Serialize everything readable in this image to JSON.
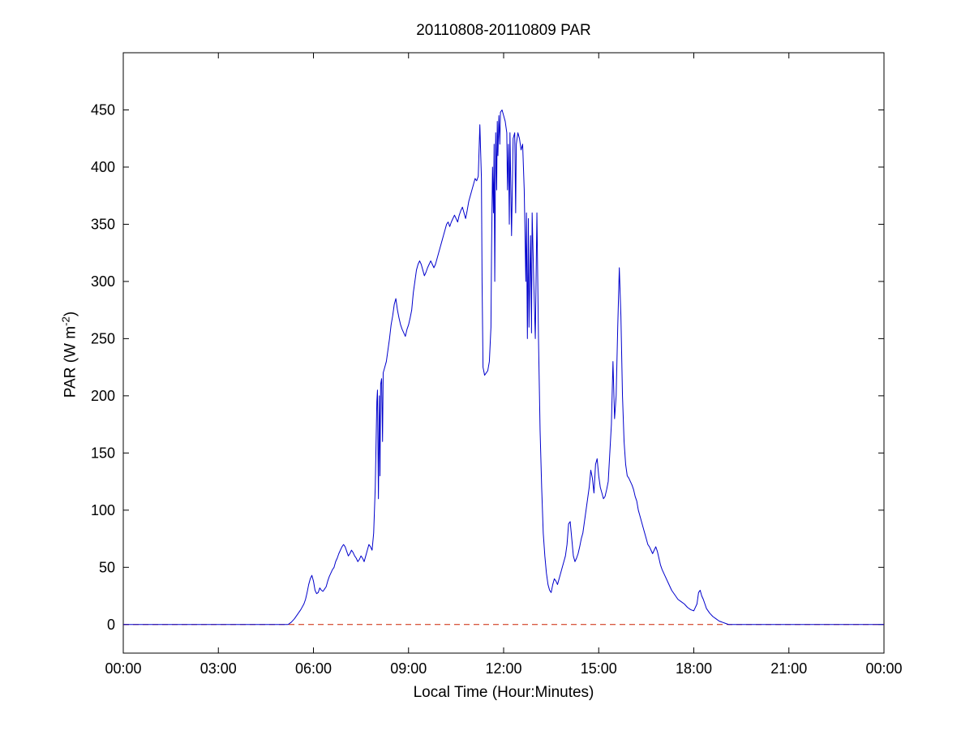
{
  "chart_data": {
    "type": "line",
    "title": "20110808-20110809 PAR",
    "xlabel": "Local Time (Hour:Minutes)",
    "ylabel": "PAR (W m-2)",
    "ylabel_parts": {
      "prefix": "PAR (W m",
      "sup": "-2",
      "suffix": ")"
    },
    "xlim": [
      0,
      24
    ],
    "ylim": [
      -25,
      500
    ],
    "grid": false,
    "legend": "none",
    "x_ticks": {
      "values": [
        0,
        3,
        6,
        9,
        12,
        15,
        18,
        21,
        24
      ],
      "labels": [
        "00:00",
        "03:00",
        "06:00",
        "09:00",
        "12:00",
        "15:00",
        "18:00",
        "21:00",
        "00:00"
      ]
    },
    "y_ticks": {
      "values": [
        0,
        50,
        100,
        150,
        200,
        250,
        300,
        350,
        400,
        450
      ],
      "labels": [
        "0",
        "50",
        "100",
        "150",
        "200",
        "250",
        "300",
        "350",
        "400",
        "450"
      ]
    },
    "series": [
      {
        "name": "zero-reference-line",
        "color": "#cc2200",
        "style": "dashed",
        "points": [
          [
            0,
            0
          ],
          [
            24,
            0
          ]
        ]
      },
      {
        "name": "PAR",
        "color": "#0000cc",
        "style": "solid",
        "points": [
          [
            0.0,
            0
          ],
          [
            1.0,
            0
          ],
          [
            2.0,
            0
          ],
          [
            3.0,
            0
          ],
          [
            4.0,
            0
          ],
          [
            5.0,
            0
          ],
          [
            5.2,
            0
          ],
          [
            5.3,
            2
          ],
          [
            5.4,
            5
          ],
          [
            5.5,
            9
          ],
          [
            5.6,
            13
          ],
          [
            5.7,
            18
          ],
          [
            5.75,
            22
          ],
          [
            5.8,
            28
          ],
          [
            5.85,
            35
          ],
          [
            5.9,
            40
          ],
          [
            5.95,
            43
          ],
          [
            6.0,
            38
          ],
          [
            6.05,
            30
          ],
          [
            6.1,
            27
          ],
          [
            6.15,
            28
          ],
          [
            6.2,
            32
          ],
          [
            6.25,
            30
          ],
          [
            6.3,
            29
          ],
          [
            6.35,
            31
          ],
          [
            6.4,
            33
          ],
          [
            6.45,
            38
          ],
          [
            6.5,
            42
          ],
          [
            6.55,
            45
          ],
          [
            6.6,
            48
          ],
          [
            6.65,
            50
          ],
          [
            6.7,
            55
          ],
          [
            6.75,
            58
          ],
          [
            6.8,
            62
          ],
          [
            6.85,
            65
          ],
          [
            6.9,
            68
          ],
          [
            6.95,
            70
          ],
          [
            7.0,
            68
          ],
          [
            7.05,
            64
          ],
          [
            7.1,
            60
          ],
          [
            7.15,
            62
          ],
          [
            7.2,
            65
          ],
          [
            7.25,
            63
          ],
          [
            7.3,
            60
          ],
          [
            7.35,
            58
          ],
          [
            7.4,
            55
          ],
          [
            7.45,
            57
          ],
          [
            7.5,
            60
          ],
          [
            7.55,
            58
          ],
          [
            7.6,
            55
          ],
          [
            7.65,
            60
          ],
          [
            7.7,
            65
          ],
          [
            7.75,
            70
          ],
          [
            7.8,
            68
          ],
          [
            7.85,
            65
          ],
          [
            7.9,
            80
          ],
          [
            7.95,
            120
          ],
          [
            8.0,
            195
          ],
          [
            8.02,
            205
          ],
          [
            8.05,
            110
          ],
          [
            8.08,
            200
          ],
          [
            8.1,
            130
          ],
          [
            8.12,
            210
          ],
          [
            8.15,
            215
          ],
          [
            8.18,
            160
          ],
          [
            8.2,
            220
          ],
          [
            8.25,
            225
          ],
          [
            8.3,
            230
          ],
          [
            8.35,
            240
          ],
          [
            8.4,
            250
          ],
          [
            8.45,
            262
          ],
          [
            8.5,
            270
          ],
          [
            8.55,
            280
          ],
          [
            8.6,
            285
          ],
          [
            8.65,
            275
          ],
          [
            8.7,
            268
          ],
          [
            8.75,
            262
          ],
          [
            8.8,
            258
          ],
          [
            8.85,
            255
          ],
          [
            8.9,
            252
          ],
          [
            8.95,
            258
          ],
          [
            9.0,
            262
          ],
          [
            9.05,
            268
          ],
          [
            9.1,
            275
          ],
          [
            9.15,
            290
          ],
          [
            9.2,
            300
          ],
          [
            9.25,
            310
          ],
          [
            9.3,
            315
          ],
          [
            9.35,
            318
          ],
          [
            9.4,
            315
          ],
          [
            9.45,
            310
          ],
          [
            9.5,
            305
          ],
          [
            9.55,
            308
          ],
          [
            9.6,
            312
          ],
          [
            9.65,
            315
          ],
          [
            9.7,
            318
          ],
          [
            9.75,
            315
          ],
          [
            9.8,
            312
          ],
          [
            9.85,
            315
          ],
          [
            9.9,
            320
          ],
          [
            9.95,
            325
          ],
          [
            10.0,
            330
          ],
          [
            10.05,
            335
          ],
          [
            10.1,
            340
          ],
          [
            10.15,
            345
          ],
          [
            10.2,
            350
          ],
          [
            10.25,
            352
          ],
          [
            10.3,
            348
          ],
          [
            10.35,
            352
          ],
          [
            10.4,
            355
          ],
          [
            10.45,
            358
          ],
          [
            10.5,
            355
          ],
          [
            10.55,
            352
          ],
          [
            10.6,
            358
          ],
          [
            10.65,
            362
          ],
          [
            10.7,
            365
          ],
          [
            10.75,
            360
          ],
          [
            10.8,
            355
          ],
          [
            10.85,
            362
          ],
          [
            10.9,
            370
          ],
          [
            10.95,
            375
          ],
          [
            11.0,
            380
          ],
          [
            11.05,
            385
          ],
          [
            11.1,
            390
          ],
          [
            11.15,
            388
          ],
          [
            11.2,
            392
          ],
          [
            11.25,
            437
          ],
          [
            11.3,
            390
          ],
          [
            11.32,
            300
          ],
          [
            11.35,
            225
          ],
          [
            11.4,
            218
          ],
          [
            11.45,
            220
          ],
          [
            11.5,
            222
          ],
          [
            11.55,
            230
          ],
          [
            11.6,
            260
          ],
          [
            11.62,
            330
          ],
          [
            11.65,
            400
          ],
          [
            11.68,
            360
          ],
          [
            11.7,
            420
          ],
          [
            11.72,
            300
          ],
          [
            11.75,
            430
          ],
          [
            11.78,
            380
          ],
          [
            11.8,
            440
          ],
          [
            11.82,
            410
          ],
          [
            11.85,
            445
          ],
          [
            11.88,
            420
          ],
          [
            11.9,
            448
          ],
          [
            11.95,
            450
          ],
          [
            12.0,
            445
          ],
          [
            12.05,
            440
          ],
          [
            12.1,
            430
          ],
          [
            12.12,
            380
          ],
          [
            12.15,
            420
          ],
          [
            12.18,
            350
          ],
          [
            12.2,
            430
          ],
          [
            12.25,
            340
          ],
          [
            12.3,
            425
          ],
          [
            12.35,
            430
          ],
          [
            12.38,
            360
          ],
          [
            12.4,
            420
          ],
          [
            12.45,
            430
          ],
          [
            12.5,
            425
          ],
          [
            12.55,
            415
          ],
          [
            12.6,
            420
          ],
          [
            12.65,
            380
          ],
          [
            12.7,
            300
          ],
          [
            12.72,
            360
          ],
          [
            12.75,
            250
          ],
          [
            12.78,
            355
          ],
          [
            12.8,
            260
          ],
          [
            12.85,
            340
          ],
          [
            12.88,
            255
          ],
          [
            12.9,
            360
          ],
          [
            12.95,
            300
          ],
          [
            13.0,
            250
          ],
          [
            13.05,
            360
          ],
          [
            13.1,
            250
          ],
          [
            13.15,
            170
          ],
          [
            13.2,
            120
          ],
          [
            13.25,
            80
          ],
          [
            13.3,
            60
          ],
          [
            13.35,
            45
          ],
          [
            13.4,
            35
          ],
          [
            13.45,
            30
          ],
          [
            13.5,
            28
          ],
          [
            13.55,
            35
          ],
          [
            13.6,
            40
          ],
          [
            13.65,
            38
          ],
          [
            13.7,
            35
          ],
          [
            13.75,
            40
          ],
          [
            13.8,
            45
          ],
          [
            13.85,
            50
          ],
          [
            13.9,
            55
          ],
          [
            13.95,
            60
          ],
          [
            14.0,
            70
          ],
          [
            14.05,
            88
          ],
          [
            14.1,
            90
          ],
          [
            14.15,
            75
          ],
          [
            14.2,
            60
          ],
          [
            14.25,
            55
          ],
          [
            14.3,
            58
          ],
          [
            14.35,
            62
          ],
          [
            14.4,
            68
          ],
          [
            14.45,
            75
          ],
          [
            14.5,
            80
          ],
          [
            14.55,
            90
          ],
          [
            14.6,
            100
          ],
          [
            14.65,
            110
          ],
          [
            14.7,
            120
          ],
          [
            14.75,
            135
          ],
          [
            14.8,
            128
          ],
          [
            14.85,
            115
          ],
          [
            14.9,
            140
          ],
          [
            14.95,
            145
          ],
          [
            15.0,
            130
          ],
          [
            15.05,
            120
          ],
          [
            15.1,
            115
          ],
          [
            15.15,
            110
          ],
          [
            15.2,
            112
          ],
          [
            15.25,
            118
          ],
          [
            15.3,
            125
          ],
          [
            15.35,
            150
          ],
          [
            15.4,
            175
          ],
          [
            15.45,
            230
          ],
          [
            15.5,
            180
          ],
          [
            15.55,
            200
          ],
          [
            15.6,
            260
          ],
          [
            15.65,
            312
          ],
          [
            15.7,
            270
          ],
          [
            15.75,
            200
          ],
          [
            15.8,
            160
          ],
          [
            15.85,
            140
          ],
          [
            15.9,
            130
          ],
          [
            15.95,
            128
          ],
          [
            16.0,
            125
          ],
          [
            16.05,
            122
          ],
          [
            16.1,
            118
          ],
          [
            16.15,
            112
          ],
          [
            16.2,
            108
          ],
          [
            16.25,
            100
          ],
          [
            16.3,
            95
          ],
          [
            16.35,
            90
          ],
          [
            16.4,
            85
          ],
          [
            16.45,
            80
          ],
          [
            16.5,
            75
          ],
          [
            16.55,
            70
          ],
          [
            16.6,
            68
          ],
          [
            16.65,
            65
          ],
          [
            16.7,
            62
          ],
          [
            16.75,
            65
          ],
          [
            16.8,
            68
          ],
          [
            16.85,
            64
          ],
          [
            16.9,
            58
          ],
          [
            16.95,
            52
          ],
          [
            17.0,
            48
          ],
          [
            17.1,
            42
          ],
          [
            17.2,
            36
          ],
          [
            17.3,
            30
          ],
          [
            17.4,
            26
          ],
          [
            17.5,
            22
          ],
          [
            17.6,
            20
          ],
          [
            17.7,
            18
          ],
          [
            17.8,
            15
          ],
          [
            17.9,
            13
          ],
          [
            18.0,
            12
          ],
          [
            18.1,
            18
          ],
          [
            18.15,
            28
          ],
          [
            18.2,
            30
          ],
          [
            18.25,
            25
          ],
          [
            18.3,
            22
          ],
          [
            18.35,
            18
          ],
          [
            18.4,
            14
          ],
          [
            18.5,
            10
          ],
          [
            18.6,
            7
          ],
          [
            18.7,
            5
          ],
          [
            18.8,
            3
          ],
          [
            18.9,
            2
          ],
          [
            19.0,
            1
          ],
          [
            19.1,
            0
          ],
          [
            20.0,
            0
          ],
          [
            21.0,
            0
          ],
          [
            22.0,
            0
          ],
          [
            23.0,
            0
          ],
          [
            24.0,
            0
          ]
        ]
      }
    ]
  }
}
